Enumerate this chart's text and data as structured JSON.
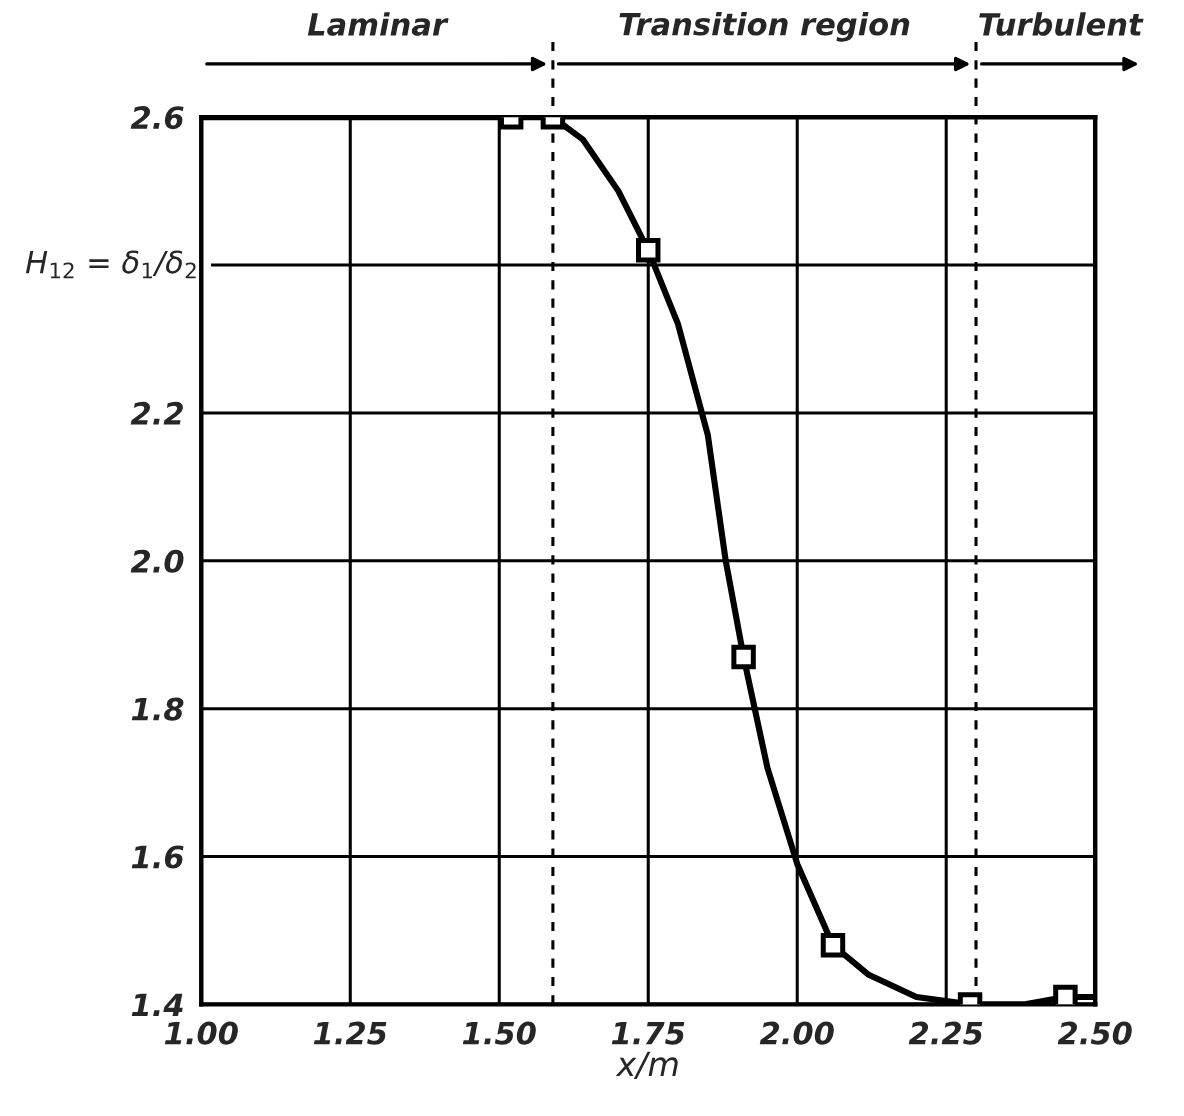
{
  "chart_data": {
    "type": "line",
    "xlabel": "x/m",
    "ylabel": "H$_{12}$ = δ$_{1}$/δ$_{2}$",
    "series": [
      {
        "type": "line",
        "color": "#000000",
        "marker": "none",
        "x": [
          1.0,
          1.52,
          1.59,
          1.64,
          1.7,
          1.75,
          1.8,
          1.85,
          1.88,
          1.91,
          1.95,
          2.0,
          2.06,
          2.12,
          2.2,
          2.29,
          2.38,
          2.45,
          2.5
        ],
        "values": [
          2.6,
          2.6,
          2.6,
          2.57,
          2.5,
          2.42,
          2.32,
          2.17,
          2.0,
          1.87,
          1.72,
          1.59,
          1.48,
          1.44,
          1.41,
          1.4,
          1.4,
          1.41,
          1.41
        ]
      },
      {
        "type": "scatter",
        "color": "#000000",
        "marker": "square",
        "x": [
          1.52,
          1.59,
          1.75,
          1.91,
          2.06,
          2.29,
          2.45
        ],
        "values": [
          2.6,
          2.6,
          2.42,
          1.87,
          1.48,
          1.4,
          1.41
        ]
      }
    ],
    "xlim": [
      1.0,
      2.5
    ],
    "ylim": [
      1.4,
      2.6
    ],
    "xticks": [
      {
        "value": 1.0,
        "label": "1.00"
      },
      1.25,
      {
        "value": 1.5,
        "label": "1.50"
      },
      1.75,
      {
        "value": 2.0,
        "label": "2.00"
      },
      2.25,
      {
        "value": 2.5,
        "label": "2.50"
      }
    ],
    "yticks": [
      1.4,
      1.6,
      1.8,
      {
        "value": 2.0,
        "label": "2.0"
      },
      2.2,
      {
        "value": 2.4,
        "label": null
      },
      2.6
    ],
    "grid": true,
    "ref_lines": [
      {
        "axis": "x",
        "value": 1.59,
        "line_style": "dashed",
        "color": "#000000"
      },
      {
        "axis": "x",
        "value": 2.3,
        "line_style": "dashed",
        "color": "#000000"
      }
    ],
    "annotations": [
      "Laminar",
      "Transition region",
      "Turbulent"
    ]
  }
}
